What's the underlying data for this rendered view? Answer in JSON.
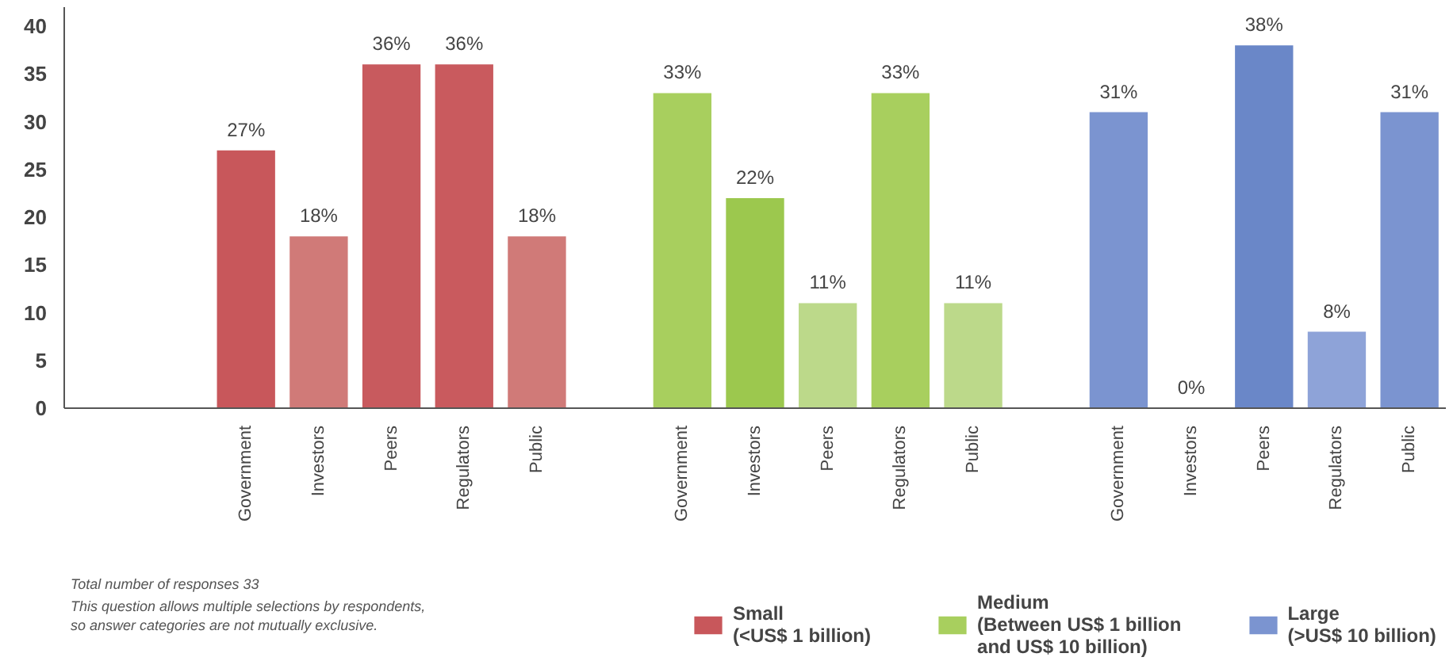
{
  "chart_data": {
    "type": "bar",
    "categories": [
      null,
      null,
      "Government",
      "Investors",
      "Peers",
      "Regulators",
      "Public",
      null,
      "Government",
      "Investors",
      "Peers",
      "Regulators",
      "Public",
      null,
      "Government",
      "Investors",
      "Peers",
      "Regulators",
      "Public"
    ],
    "series": [
      {
        "name": "Small\n(<US$ 1 billion)",
        "color": "#c8575b",
        "colors": [
          "#c8575b",
          "#c8575b",
          "#c8575b",
          "#d07a78",
          "#c85a5e",
          "#c95a5e",
          "#d07a78",
          "#c8575b",
          "#c8575b",
          "#c8575b",
          "#c8575b",
          "#c8575b",
          "#c8575b",
          "#c8575b",
          "#c8575b",
          "#c8575b",
          "#c8575b",
          "#c8575b",
          "#c8575b"
        ],
        "values": [
          null,
          null,
          27,
          18,
          36,
          36,
          18,
          null,
          null,
          null,
          null,
          null,
          null,
          null,
          null,
          null,
          null,
          null,
          null
        ],
        "value_labels": [
          null,
          null,
          "27%",
          "18%",
          "36%",
          "36%",
          "18%",
          null,
          null,
          null,
          null,
          null,
          null,
          null,
          null,
          null,
          null,
          null,
          null
        ]
      },
      {
        "name": "Medium\n(Between US$ 1 billion\nand US$ 10 billion)",
        "color": "#a8cf5e",
        "colors": [
          "#a8cf5e",
          "#a8cf5e",
          "#a8cf5e",
          "#a8cf5e",
          "#a8cf5e",
          "#a8cf5e",
          "#a8cf5e",
          "#a8cf5e",
          "#a8cf5e",
          "#9cc84e",
          "#bcd98a",
          "#a8cf5e",
          "#bcd98a",
          "#a8cf5e",
          "#a8cf5e",
          "#a8cf5e",
          "#a8cf5e",
          "#a8cf5e",
          "#a8cf5e"
        ],
        "values": [
          null,
          null,
          null,
          null,
          null,
          null,
          null,
          null,
          33,
          22,
          11,
          33,
          11,
          null,
          null,
          null,
          null,
          null,
          null
        ],
        "value_labels": [
          null,
          null,
          null,
          null,
          null,
          null,
          null,
          null,
          "33%",
          "22%",
          "11%",
          "33%",
          "11%",
          null,
          null,
          null,
          null,
          null,
          null
        ]
      },
      {
        "name": "Large\n(>US$ 10 billion)",
        "color": "#7b94d0",
        "colors": [
          "#7b94d0",
          "#7b94d0",
          "#7b94d0",
          "#7b94d0",
          "#7b94d0",
          "#7b94d0",
          "#7b94d0",
          "#7b94d0",
          "#7b94d0",
          "#7b94d0",
          "#7b94d0",
          "#7b94d0",
          "#7b94d0",
          "#7b94d0",
          "#7b94d0",
          "#7b94d0",
          "#6a87c8",
          "#8ea3d8",
          "#7b94d0"
        ],
        "values": [
          null,
          null,
          null,
          null,
          null,
          null,
          null,
          null,
          null,
          null,
          null,
          null,
          null,
          null,
          31,
          0,
          38,
          8,
          31
        ],
        "value_labels": [
          null,
          null,
          null,
          null,
          null,
          null,
          null,
          null,
          null,
          null,
          null,
          null,
          null,
          null,
          "31%",
          "0%",
          "38%",
          "8%",
          "31%"
        ]
      }
    ],
    "ylim": [
      0,
      42
    ],
    "yticks": [
      0,
      5,
      10,
      15,
      20,
      25,
      30,
      35,
      40
    ],
    "grid": false,
    "legend": "bottom",
    "annotations": [
      "Total number of responses 33",
      "This question allows multiple selections by respondents,\nso answer categories are not mutually exclusive."
    ]
  }
}
